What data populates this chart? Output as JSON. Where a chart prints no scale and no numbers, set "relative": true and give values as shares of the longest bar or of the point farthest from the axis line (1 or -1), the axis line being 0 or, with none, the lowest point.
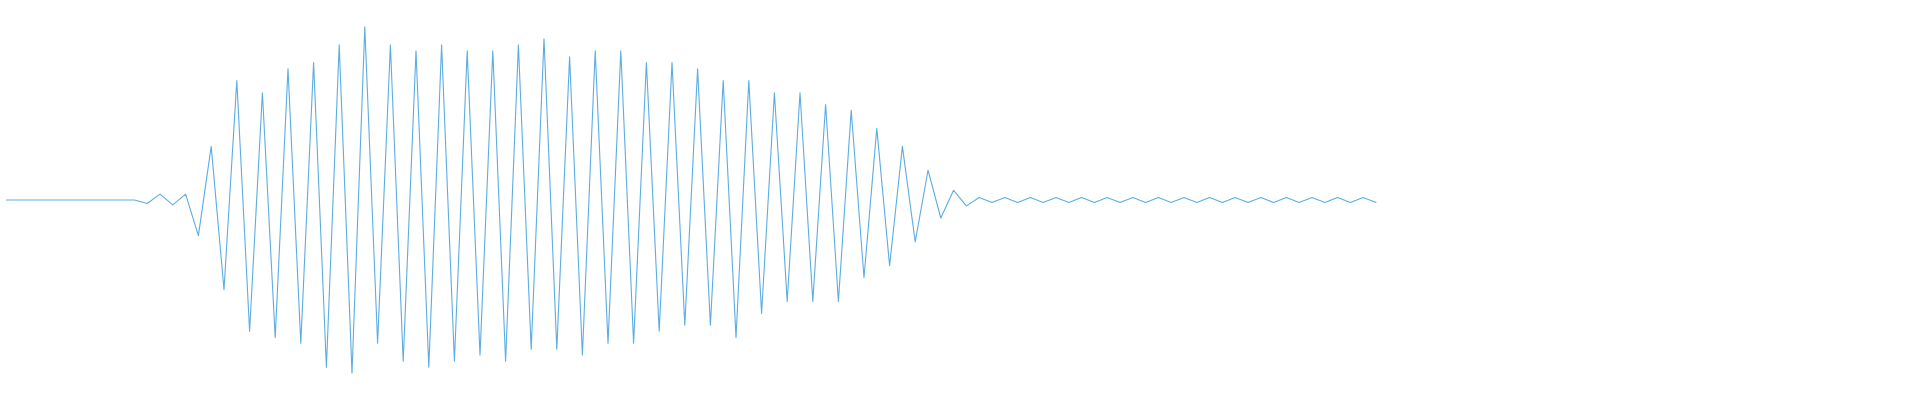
{
  "chart_data": {
    "type": "line",
    "relative": true,
    "categories": [
      null,
      null,
      null,
      null,
      null,
      null,
      null,
      null,
      null,
      null,
      null,
      null,
      null,
      null,
      null,
      null,
      null,
      null,
      null,
      null,
      null,
      null,
      null,
      null,
      null,
      null,
      null,
      null,
      null,
      null,
      null,
      null,
      null,
      null,
      null,
      null,
      null,
      null,
      null,
      null,
      null,
      null,
      null,
      null,
      null,
      null,
      null,
      null,
      null,
      null,
      null,
      null,
      null,
      null,
      null,
      null,
      null,
      null,
      null,
      null,
      null,
      null,
      null,
      null,
      null,
      null,
      null,
      null,
      null,
      null,
      null,
      null,
      null,
      null,
      null,
      null,
      null,
      null,
      null,
      null,
      null,
      null,
      null,
      null,
      null,
      null,
      null,
      null,
      null,
      null,
      null,
      null,
      null,
      null,
      null,
      null,
      null,
      null,
      null,
      null,
      null,
      null,
      null,
      null,
      null,
      null,
      null,
      null,
      null,
      null,
      null,
      null,
      null,
      null,
      null,
      null,
      null,
      null,
      null,
      null,
      null,
      null,
      null,
      null,
      null,
      null,
      null,
      null,
      null,
      null,
      null,
      null,
      null,
      null,
      null,
      null,
      null,
      null,
      null,
      null,
      null,
      null,
      null,
      null,
      null,
      null,
      null,
      null,
      null,
      null
    ],
    "series": [
      {
        "color": "#5dade2",
        "values": [
          0.5,
          0.5,
          0.5,
          0.5,
          0.5,
          0.5,
          0.5,
          0.5,
          0.5,
          0.5,
          0.5,
          0.49,
          0.517,
          0.486,
          0.517,
          0.397,
          0.655,
          0.241,
          0.845,
          0.121,
          0.81,
          0.103,
          0.879,
          0.086,
          0.897,
          0.017,
          0.948,
          0,
          1.0,
          0.086,
          0.948,
          0.034,
          0.931,
          0.017,
          0.948,
          0.034,
          0.931,
          0.052,
          0.931,
          0.034,
          0.948,
          0.069,
          0.966,
          0.069,
          0.914,
          0.052,
          0.931,
          0.086,
          0.931,
          0.086,
          0.897,
          0.121,
          0.897,
          0.138,
          0.879,
          0.138,
          0.845,
          0.103,
          0.845,
          0.172,
          0.81,
          0.207,
          0.81,
          0.207,
          0.776,
          0.207,
          0.759,
          0.276,
          0.707,
          0.31,
          0.655,
          0.379,
          0.586,
          0.448,
          0.528,
          0.483,
          0.507,
          0.493,
          0.507,
          0.493,
          0.507,
          0.493,
          0.507,
          0.493,
          0.507,
          0.493,
          0.507,
          0.493,
          0.507,
          0.493,
          0.507,
          0.493,
          0.507,
          0.493,
          0.507,
          0.493,
          0.507,
          0.493,
          0.507,
          0.493,
          0.507,
          0.493,
          0.507,
          0.493,
          0.507,
          0.493,
          0.507,
          0.493,
          null,
          null,
          null,
          null,
          null,
          null,
          null,
          null,
          null,
          null,
          null,
          null,
          null,
          null,
          null,
          null,
          null,
          null,
          null,
          null,
          null,
          null,
          null,
          null,
          null,
          null,
          null,
          null,
          null,
          null,
          null,
          null,
          null,
          null,
          null,
          null,
          null,
          null,
          null,
          null,
          null,
          null
        ]
      }
    ]
  }
}
